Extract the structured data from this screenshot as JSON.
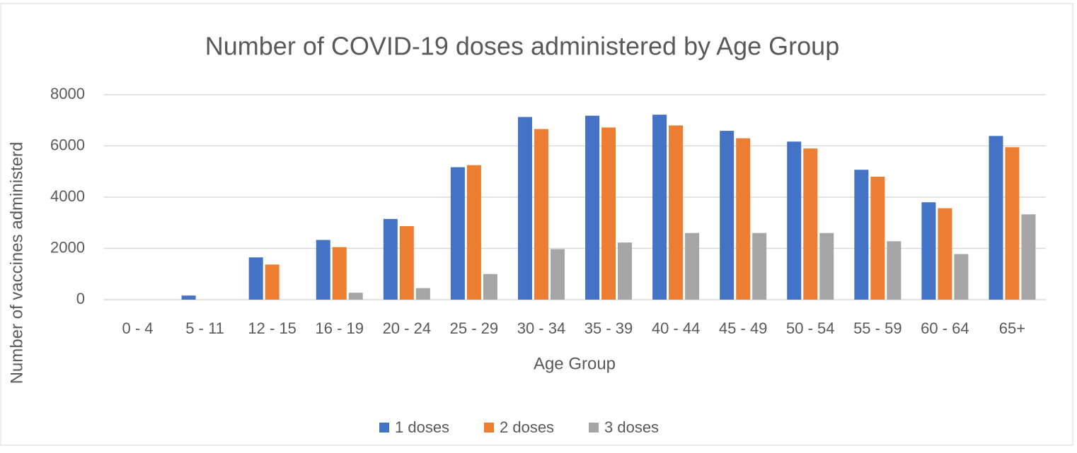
{
  "chart_data": {
    "type": "bar",
    "title": "Number of COVID-19 doses administered by Age Group",
    "x_label": "Age Group",
    "y_label": "Number of vaccines administerd",
    "categories": [
      "0 - 4",
      "5 - 11",
      "12 - 15",
      "16 - 19",
      "20 - 24",
      "25 - 29",
      "30 - 34",
      "35 - 39",
      "40 - 44",
      "45 - 49",
      "50 - 54",
      "55 - 59",
      "60 - 64",
      "65+"
    ],
    "series": [
      {
        "name": "1 doses",
        "color": "#4472c4",
        "values": [
          0,
          160,
          1650,
          2330,
          3150,
          5170,
          7130,
          7180,
          7220,
          6590,
          6170,
          5070,
          3800,
          6390
        ]
      },
      {
        "name": "2 doses",
        "color": "#ed7d31",
        "values": [
          0,
          0,
          1370,
          2050,
          2870,
          5250,
          6660,
          6720,
          6800,
          6300,
          5900,
          4800,
          3570,
          5950
        ]
      },
      {
        "name": "3 doses",
        "color": "#a5a5a5",
        "values": [
          0,
          0,
          0,
          270,
          450,
          1000,
          1970,
          2230,
          2600,
          2600,
          2600,
          2280,
          1780,
          3330
        ]
      }
    ],
    "ylim": [
      0,
      8000
    ],
    "yticks": [
      0,
      2000,
      4000,
      6000,
      8000
    ],
    "grid": true,
    "legend": "bottom"
  }
}
